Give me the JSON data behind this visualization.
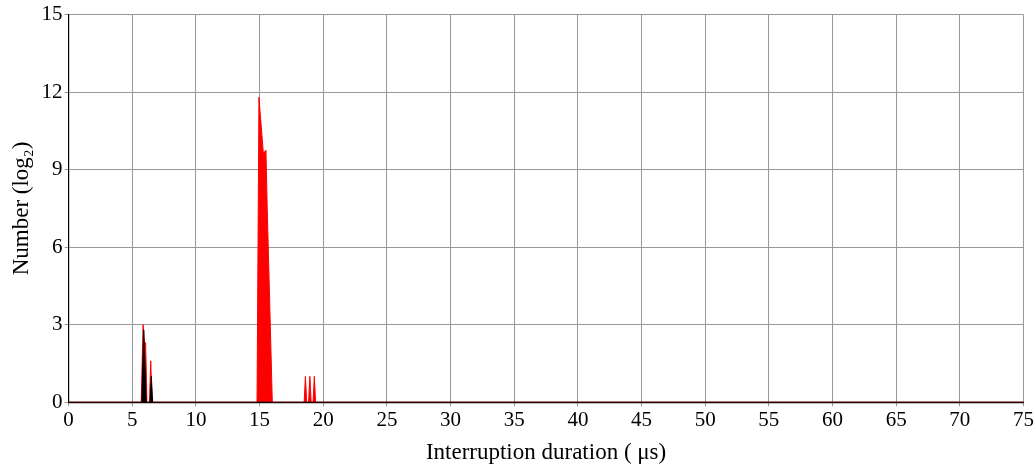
{
  "chart_data": {
    "type": "area",
    "xlabel": "Interruption duration ( μs)",
    "ylabel": "Number (log₂)",
    "xlim": [
      0,
      75
    ],
    "xticks": [
      0,
      5,
      10,
      15,
      20,
      25,
      30,
      35,
      40,
      45,
      50,
      55,
      60,
      65,
      70,
      75
    ],
    "ylim": [
      0,
      15
    ],
    "yticks": [
      0,
      3,
      6,
      9,
      12,
      15
    ],
    "grid": true,
    "marker": "none",
    "series": [
      {
        "color": "#ff0000",
        "x": [
          0,
          5.7,
          5.85,
          5.95,
          6.05,
          6.15,
          6.35,
          6.45,
          6.55,
          14.8,
          14.95,
          15.3,
          15.4,
          15.5,
          15.6,
          16,
          18.5,
          18.6,
          18.7,
          18.85,
          18.95,
          19.05,
          19.2,
          19.3,
          19.4,
          75
        ],
        "values": [
          0,
          0,
          3,
          2.3,
          2.3,
          0,
          0,
          1.6,
          0,
          0,
          11.8,
          9.6,
          9.7,
          9.75,
          7.5,
          0,
          0,
          1,
          0,
          0,
          1,
          0,
          0,
          1,
          0,
          0
        ]
      },
      {
        "color": "#000000",
        "x": [
          0,
          5.75,
          5.9,
          6.1,
          6.4,
          6.5,
          6.6,
          75
        ],
        "values": [
          0,
          0,
          2.8,
          0,
          0,
          1,
          0,
          0
        ]
      }
    ]
  }
}
